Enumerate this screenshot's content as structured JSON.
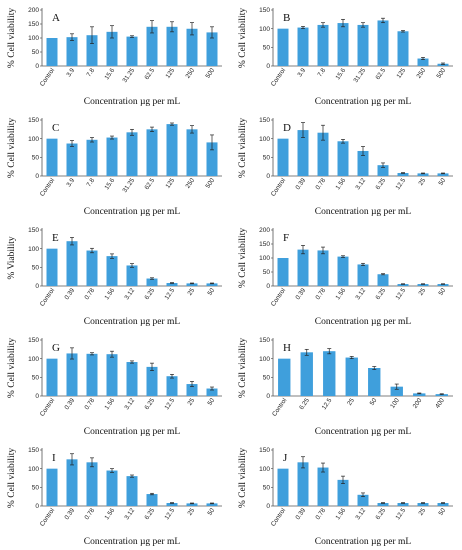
{
  "chart_data": [
    {
      "type": "bar",
      "panel": "A",
      "title": "",
      "xlabel": "Concentration µg per mL",
      "ylabel": "% Cell viability",
      "ylim": [
        0,
        200
      ],
      "yticks": [
        0,
        50,
        100,
        150,
        200
      ],
      "categories": [
        "Control",
        "3.9",
        "7.8",
        "15.6",
        "31.25",
        "62.5",
        "125",
        "250",
        "500"
      ],
      "values": [
        100,
        103,
        110,
        122,
        105,
        140,
        140,
        133,
        120
      ],
      "errors": [
        0,
        12,
        30,
        22,
        3,
        22,
        18,
        22,
        20
      ],
      "bar_color": "#3f9fdc"
    },
    {
      "type": "bar",
      "panel": "B",
      "title": "",
      "xlabel": "Concentration µg per mL",
      "ylabel": "% Cell viability",
      "ylim": [
        0,
        150
      ],
      "yticks": [
        0,
        50,
        100,
        150
      ],
      "categories": [
        "Control",
        "3.9",
        "7.8",
        "15.6",
        "31.25",
        "62.5",
        "125",
        "250",
        "500"
      ],
      "values": [
        100,
        103,
        110,
        115,
        110,
        122,
        93,
        20,
        6
      ],
      "errors": [
        0,
        3,
        6,
        10,
        6,
        6,
        2,
        3,
        2
      ],
      "bar_color": "#3f9fdc"
    },
    {
      "type": "bar",
      "panel": "C",
      "title": "",
      "xlabel": "Concentration µg per mL",
      "ylabel": "% Cell viability",
      "ylim": [
        0,
        150
      ],
      "yticks": [
        0,
        50,
        100,
        150
      ],
      "categories": [
        "Control",
        "3.9",
        "7.8",
        "15.6",
        "31.25",
        "62.5",
        "125",
        "250",
        "500"
      ],
      "values": [
        100,
        87,
        97,
        103,
        117,
        125,
        139,
        125,
        90
      ],
      "errors": [
        0,
        8,
        6,
        4,
        8,
        6,
        3,
        10,
        20
      ],
      "bar_color": "#3f9fdc"
    },
    {
      "type": "bar",
      "panel": "D",
      "title": "",
      "xlabel": "Concentration µg per mL",
      "ylabel": "% Cell viability",
      "ylim": [
        0,
        150
      ],
      "yticks": [
        0,
        50,
        100,
        150
      ],
      "categories": [
        "Control",
        "0.39",
        "0.78",
        "1.56",
        "3.12",
        "6.25",
        "12.5",
        "25",
        "50"
      ],
      "values": [
        100,
        123,
        116,
        93,
        67,
        29,
        8,
        7,
        7
      ],
      "errors": [
        0,
        20,
        20,
        5,
        12,
        6,
        1,
        1,
        1
      ],
      "bar_color": "#3f9fdc"
    },
    {
      "type": "bar",
      "panel": "E",
      "title": "",
      "xlabel": "Concentration µg per mL",
      "ylabel": "% Viability",
      "ylim": [
        0,
        150
      ],
      "yticks": [
        0,
        50,
        100,
        150
      ],
      "categories": [
        "Control",
        "0.39",
        "0.78",
        "1.56",
        "3.12",
        "6.25",
        "12.5",
        "25",
        "50"
      ],
      "values": [
        100,
        120,
        95,
        80,
        55,
        20,
        8,
        7,
        7
      ],
      "errors": [
        0,
        10,
        6,
        6,
        5,
        2,
        1,
        1,
        1
      ],
      "bar_color": "#3f9fdc"
    },
    {
      "type": "bar",
      "panel": "F",
      "title": "",
      "xlabel": "Concentration µg per mL",
      "ylabel": "% Cell viability",
      "ylim": [
        0,
        200
      ],
      "yticks": [
        0,
        50,
        100,
        150,
        200
      ],
      "categories": [
        "Control",
        "0.39",
        "0.78",
        "1.56",
        "3.12",
        "6.25",
        "12.5",
        "25",
        "50"
      ],
      "values": [
        100,
        130,
        127,
        105,
        77,
        42,
        7,
        7,
        7
      ],
      "errors": [
        0,
        15,
        12,
        3,
        4,
        2,
        1,
        1,
        1
      ],
      "bar_color": "#3f9fdc"
    },
    {
      "type": "bar",
      "panel": "G",
      "title": "",
      "xlabel": "Concentration µg per mL",
      "ylabel": "% Cell viability",
      "ylim": [
        0,
        150
      ],
      "yticks": [
        0,
        50,
        100,
        150
      ],
      "categories": [
        "Control",
        "0.39",
        "0.78",
        "1.56",
        "3.12",
        "6.25",
        "12.5",
        "25",
        "50"
      ],
      "values": [
        100,
        114,
        113,
        112,
        91,
        78,
        53,
        32,
        20
      ],
      "errors": [
        0,
        15,
        3,
        8,
        3,
        10,
        5,
        7,
        4
      ],
      "bar_color": "#3f9fdc"
    },
    {
      "type": "bar",
      "panel": "H",
      "title": "",
      "xlabel": "Concentration µg per mL",
      "ylabel": "% Cell viability",
      "ylim": [
        0,
        150
      ],
      "yticks": [
        0,
        50,
        100,
        150
      ],
      "categories": [
        "Control",
        "6.25",
        "12.5",
        "25",
        "50",
        "100",
        "200",
        "400"
      ],
      "values": [
        100,
        117,
        120,
        103,
        75,
        25,
        7,
        5
      ],
      "errors": [
        0,
        8,
        7,
        3,
        4,
        7,
        1,
        1
      ],
      "bar_color": "#3f9fdc"
    },
    {
      "type": "bar",
      "panel": "I",
      "title": "",
      "xlabel": "Concentration µg per mL",
      "ylabel": "% Cell viability",
      "ylim": [
        0,
        150
      ],
      "yticks": [
        0,
        50,
        100,
        150
      ],
      "categories": [
        "Control",
        "0.39",
        "0.78",
        "1.56",
        "3.12",
        "6.25",
        "12.5",
        "25",
        "50"
      ],
      "values": [
        100,
        125,
        117,
        95,
        80,
        32,
        8,
        7,
        7
      ],
      "errors": [
        0,
        15,
        12,
        5,
        3,
        2,
        1,
        1,
        1
      ],
      "bar_color": "#3f9fdc"
    },
    {
      "type": "bar",
      "panel": "J",
      "title": "",
      "xlabel": "Concentration µg per mL",
      "ylabel": "% Cell viability",
      "ylim": [
        0,
        150
      ],
      "yticks": [
        0,
        50,
        100,
        150
      ],
      "categories": [
        "Control",
        "0.39",
        "0.78",
        "1.56",
        "3.12",
        "6.25",
        "12.5",
        "25",
        "50"
      ],
      "values": [
        100,
        117,
        103,
        70,
        30,
        8,
        8,
        8,
        8
      ],
      "errors": [
        0,
        15,
        12,
        10,
        5,
        1,
        1,
        1,
        1
      ],
      "bar_color": "#3f9fdc"
    }
  ]
}
